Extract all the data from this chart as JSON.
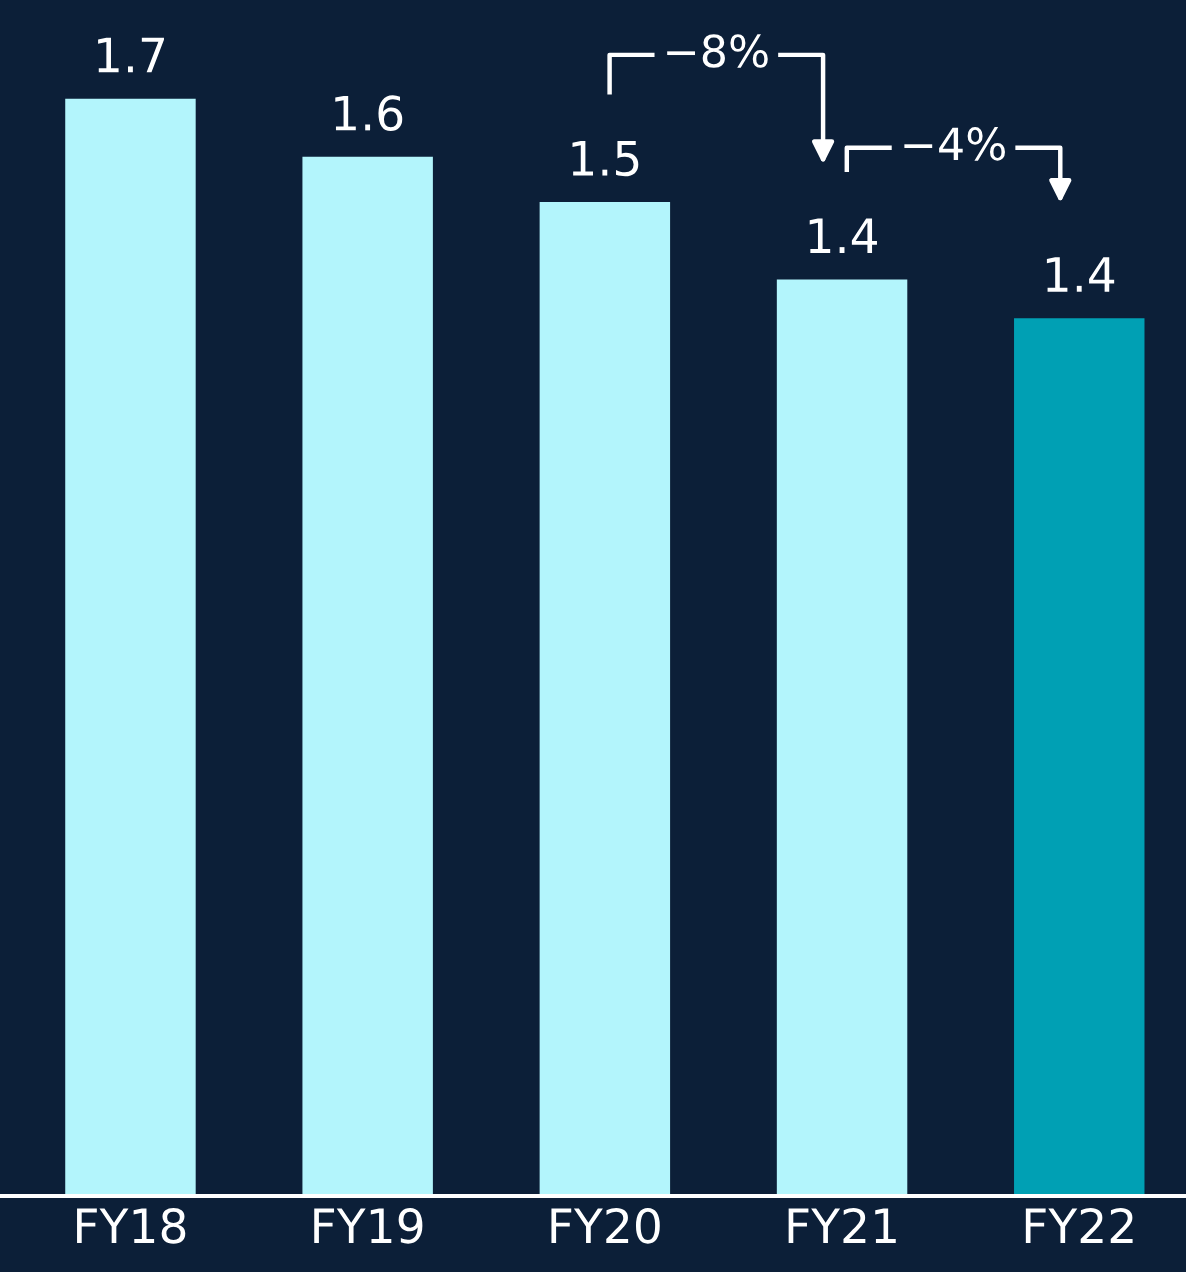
{
  "chart_data": {
    "type": "bar",
    "categories": [
      "FY18",
      "FY19",
      "FY20",
      "FY21",
      "FY22"
    ],
    "values": [
      1.7,
      1.61,
      1.54,
      1.42,
      1.36
    ],
    "value_labels": [
      "1.7",
      "1.6",
      "1.5",
      "1.4",
      "1.4"
    ],
    "colors": [
      "#b3f5fc",
      "#b3f5fc",
      "#b3f5fc",
      "#b3f5fc",
      "#00a0b4"
    ],
    "annotations": [
      "−8%",
      "−4%"
    ],
    "grid": false,
    "legend": false
  }
}
